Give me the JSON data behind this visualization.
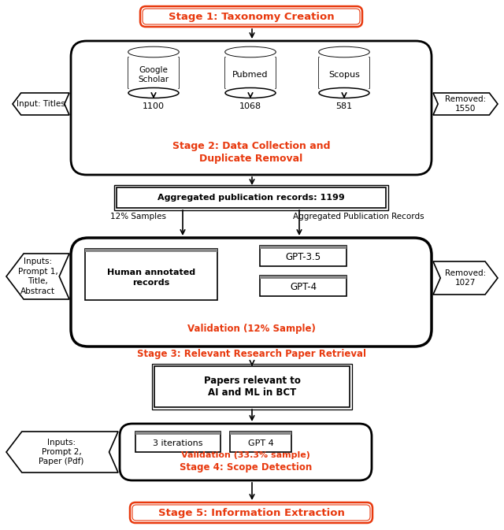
{
  "stage1_text": "Stage 1: Taxonomy Creation",
  "stage2_text": "Stage 2: Data Collection and\nDuplicate Removal",
  "stage3_text": "Stage 3: Relevant Research Paper Retrieval",
  "stage4_text": "Stage 4: Scope Detection",
  "stage5_text": "Stage 5: Information Extraction",
  "agg_text": "Aggregated publication records: 1199",
  "papers_text": "Papers relevant to\nAI and ML in BCT",
  "google_scholar": "Google\nScholar",
  "pubmed": "Pubmed",
  "scopus": "Scopus",
  "num_google": "1100",
  "num_pubmed": "1068",
  "num_scopus": "581",
  "removed1": "Removed:\n1550",
  "removed2": "Removed:\n1027",
  "input_titles": "Input: Titles",
  "inputs_prompt1": "Inputs:\nPrompt 1,\nTitle,\nAbstract",
  "inputs_prompt2": "Inputs:\nPrompt 2,\nPaper (Pdf)",
  "samples_12": "12% Samples",
  "agg_pub_records": "Aggregated Publication Records",
  "human_annotated": "Human annotated\nrecords",
  "gpt35": "GPT-3.5",
  "gpt4": "GPT-4",
  "validation1": "Validation (12% Sample)",
  "validation2": "Validation (33.3% sample)",
  "iterations": "3 iterations",
  "gpt4_stage4": "GPT 4",
  "orange_color": "#E8390E",
  "black_color": "#000000",
  "bg_color": "#FFFFFF"
}
